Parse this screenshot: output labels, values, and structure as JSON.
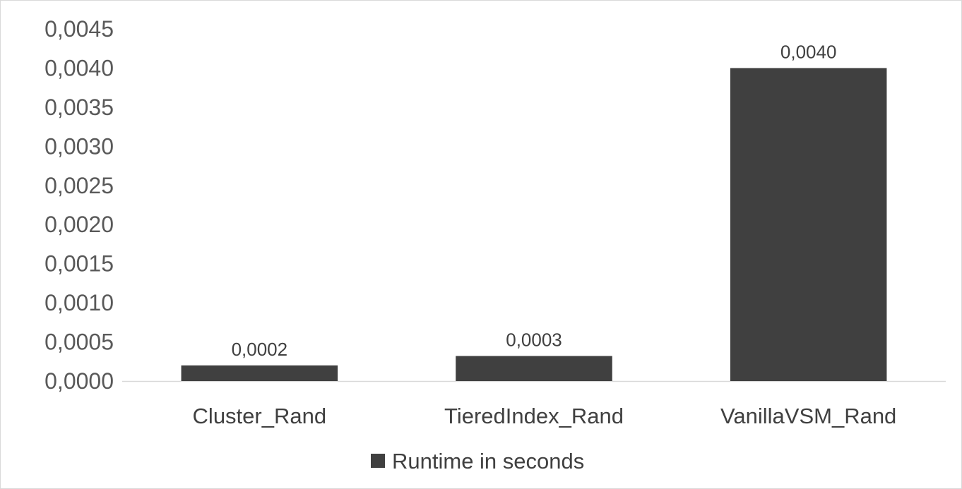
{
  "chart_data": {
    "type": "bar",
    "categories": [
      "Cluster_Rand",
      "TieredIndex_Rand",
      "VanillaVSM_Rand"
    ],
    "series": [
      {
        "name": "Runtime in seconds",
        "values": [
          0.0002,
          0.00032,
          0.004
        ],
        "data_labels": [
          "0,0002",
          "0,0003",
          "0,0040"
        ],
        "color": "#404040"
      }
    ],
    "y_ticks": [
      0,
      0.0005,
      0.001,
      0.0015,
      0.002,
      0.0025,
      0.003,
      0.0035,
      0.004,
      0.0045
    ],
    "y_tick_labels": [
      "0,0000",
      "0,0005",
      "0,0010",
      "0,0015",
      "0,0020",
      "0,0025",
      "0,0030",
      "0,0035",
      "0,0040",
      "0,0045"
    ],
    "ylim": [
      0,
      0.0045
    ],
    "title": "",
    "xlabel": "",
    "ylabel": "",
    "grid": false,
    "legend_position": "bottom",
    "axis_color": "#d9d9d9"
  }
}
